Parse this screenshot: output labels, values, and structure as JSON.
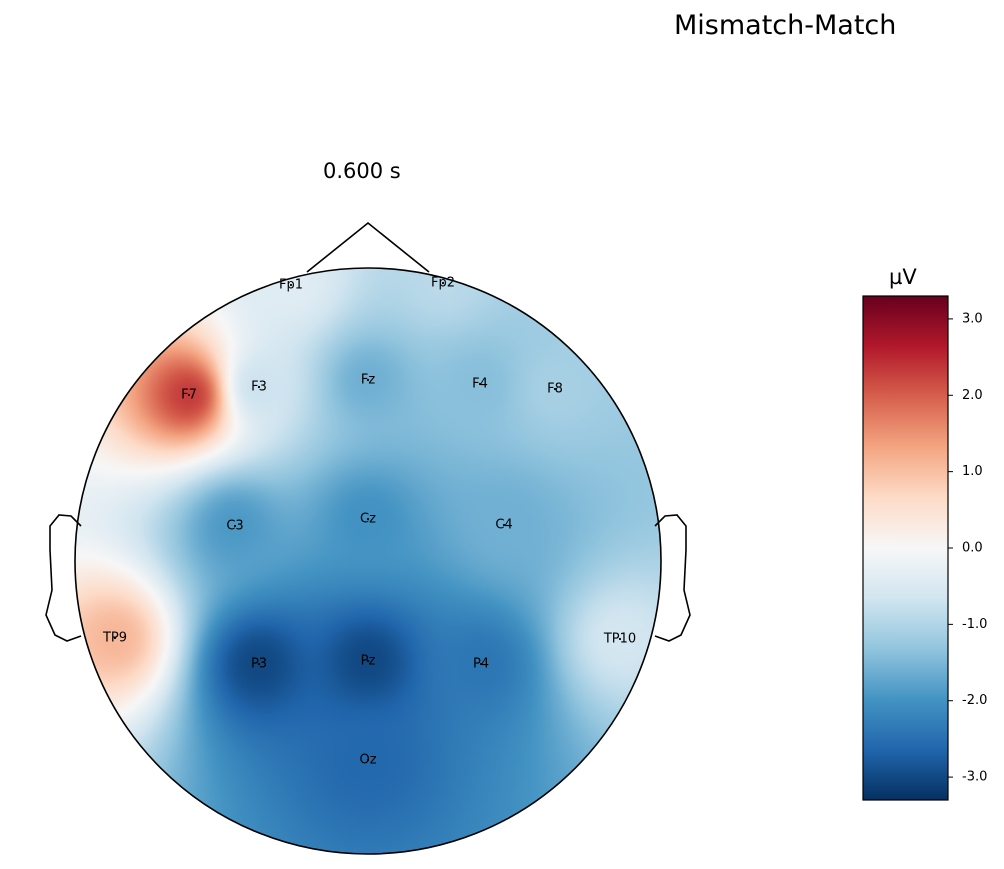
{
  "figure": {
    "suptitle": "Mismatch-Match"
  },
  "chart_data": {
    "type": "heatmap",
    "subtype": "eeg-topomap",
    "title": "0.600 s",
    "unit": "µV",
    "colormap": "RdBu_r",
    "clim": [
      -3.3,
      3.3
    ],
    "colorbar_ticks": [
      -3.0,
      -2.0,
      -1.0,
      0.0,
      1.0,
      2.0,
      3.0
    ],
    "colorbar_tick_labels": [
      "-3.0",
      "-2.0",
      "-1.0",
      "0.0",
      "1.0",
      "2.0",
      "3.0"
    ],
    "colors": [
      "#053061",
      "#2166ac",
      "#4393c3",
      "#92c5de",
      "#d1e5f0",
      "#f7f7f7",
      "#fddbc7",
      "#f4a582",
      "#d6604d",
      "#b2182b",
      "#67001f"
    ],
    "channels": [
      {
        "name": "Fp1",
        "value": -0.4
      },
      {
        "name": "Fp2",
        "value": -0.9
      },
      {
        "name": "F7",
        "value": 2.3
      },
      {
        "name": "F3",
        "value": -0.7
      },
      {
        "name": "Fz",
        "value": -1.6
      },
      {
        "name": "F4",
        "value": -1.4
      },
      {
        "name": "F8",
        "value": -1.1
      },
      {
        "name": "C3",
        "value": -1.9
      },
      {
        "name": "Cz",
        "value": -2.0
      },
      {
        "name": "C4",
        "value": -1.6
      },
      {
        "name": "TP9",
        "value": 1.1
      },
      {
        "name": "TP10",
        "value": -0.6
      },
      {
        "name": "P3",
        "value": -3.0
      },
      {
        "name": "Pz",
        "value": -3.0
      },
      {
        "name": "P4",
        "value": -2.4
      },
      {
        "name": "Oz",
        "value": -2.6
      }
    ]
  }
}
